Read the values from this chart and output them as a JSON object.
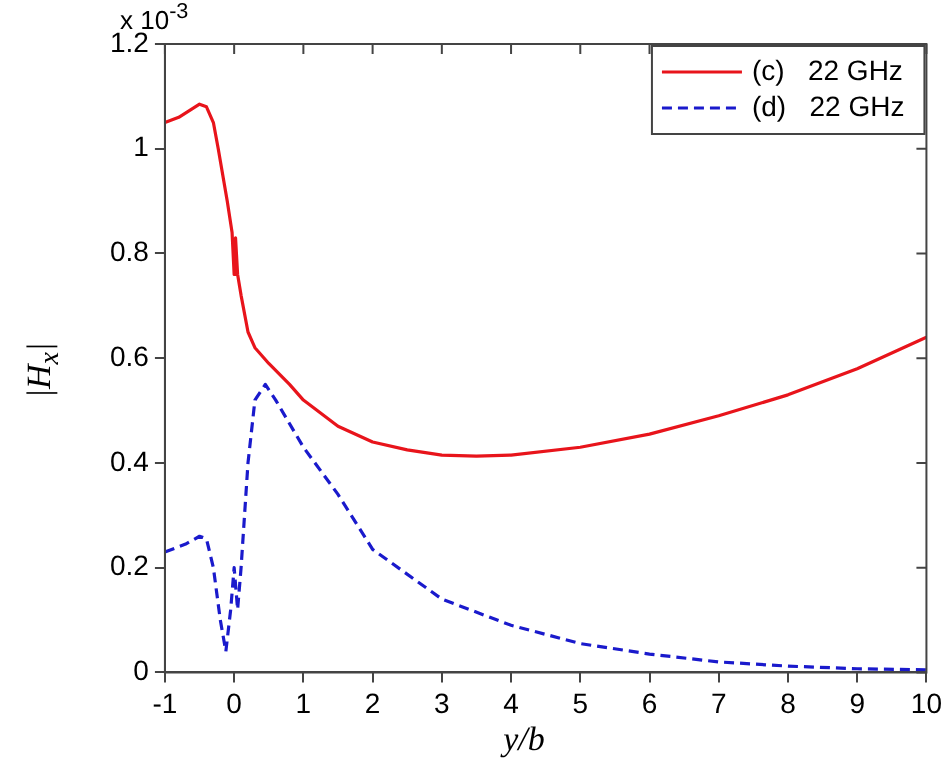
{
  "chart_data": {
    "type": "line",
    "xlabel": "y/b",
    "ylabel": "|H$_{x}$|",
    "annotations": [
      "x 10$^{-3}$"
    ],
    "xlim": [
      -1,
      10
    ],
    "xticks": [
      -1,
      0,
      1,
      2,
      3,
      4,
      5,
      6,
      7,
      8,
      9,
      10
    ],
    "ylim": [
      0,
      1.2
    ],
    "yticks": [
      0,
      0.2,
      0.4,
      0.6,
      0.8,
      1,
      1.2
    ],
    "grid": false,
    "legend": "top right",
    "marker": "none",
    "series": [
      {
        "name": "(c)   22 GHz",
        "color": "#e8141b",
        "line_style": "solid",
        "x": [
          -1,
          -0.8,
          -0.5,
          -0.4,
          -0.3,
          -0.23,
          -0.1,
          -0.03,
          0,
          0.02,
          0.05,
          0.1,
          0.2,
          0.3,
          0.5,
          0.8,
          1,
          1.5,
          2,
          2.5,
          3,
          3.5,
          4,
          5,
          6,
          7,
          8,
          9,
          10
        ],
        "values": [
          1.05,
          1.06,
          1.085,
          1.08,
          1.05,
          1.0,
          0.9,
          0.84,
          0.76,
          0.83,
          0.76,
          0.72,
          0.65,
          0.62,
          0.59,
          0.55,
          0.52,
          0.47,
          0.44,
          0.425,
          0.415,
          0.413,
          0.415,
          0.43,
          0.455,
          0.49,
          0.53,
          0.58,
          0.64
        ]
      },
      {
        "name": "(d)   22 GHz",
        "color": "#1a1acc",
        "line_style": "dashed",
        "x": [
          -1,
          -0.7,
          -0.5,
          -0.4,
          -0.3,
          -0.2,
          -0.12,
          -0.05,
          0,
          0.05,
          0.1,
          0.2,
          0.3,
          0.45,
          0.6,
          1,
          1.5,
          2,
          3,
          4,
          5,
          6,
          7,
          8,
          9,
          10
        ],
        "values": [
          0.23,
          0.245,
          0.26,
          0.255,
          0.2,
          0.1,
          0.04,
          0.12,
          0.2,
          0.12,
          0.2,
          0.4,
          0.52,
          0.55,
          0.52,
          0.43,
          0.34,
          0.235,
          0.14,
          0.09,
          0.055,
          0.035,
          0.02,
          0.012,
          0.007,
          0.005
        ]
      }
    ]
  }
}
